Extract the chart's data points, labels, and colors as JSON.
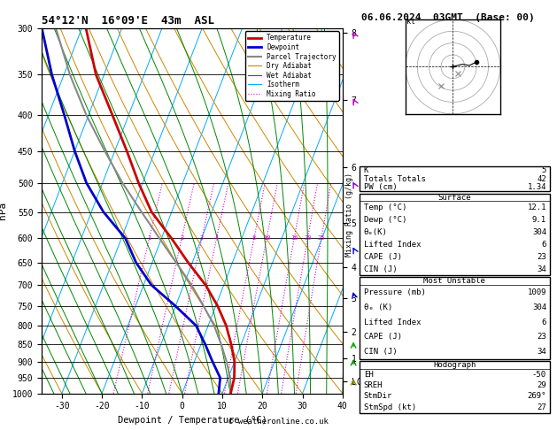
{
  "title_left": "54°12'N  16°09'E  43m  ASL",
  "title_right": "06.06.2024  03GMT  (Base: 00)",
  "copyright": "© weatheronline.co.uk",
  "xlabel": "Dewpoint / Temperature (°C)",
  "ylabel_left": "hPa",
  "x_min": -35,
  "x_max": 40,
  "pressure_levels": [
    300,
    350,
    400,
    450,
    500,
    550,
    600,
    650,
    700,
    750,
    800,
    850,
    900,
    950,
    1000
  ],
  "pressure_ticks": [
    300,
    350,
    400,
    450,
    500,
    550,
    600,
    650,
    700,
    750,
    800,
    850,
    900,
    950,
    1000
  ],
  "km_ticks": [
    "8",
    "7",
    "6",
    "5",
    "4",
    "3",
    "2",
    "1",
    "LCL"
  ],
  "km_pressures": [
    305,
    380,
    475,
    570,
    660,
    730,
    815,
    890,
    960
  ],
  "isotherm_color": "#00aaff",
  "dry_adiabat_color": "#cc8800",
  "wet_adiabat_color": "#008800",
  "mixing_ratio_color": "#dd00dd",
  "mixing_ratio_values": [
    1,
    2,
    3,
    4,
    8,
    10,
    16,
    20,
    25
  ],
  "mixing_ratio_label_pressure": 600,
  "temp_profile_T": [
    12.1,
    11.5,
    10.0,
    7.5,
    4.5,
    0.5,
    -4.5,
    -11.0,
    -17.5,
    -25.0,
    -31.0,
    -37.0,
    -44.0,
    -52.0,
    -59.0
  ],
  "temp_profile_P": [
    1000,
    950,
    900,
    850,
    800,
    750,
    700,
    650,
    600,
    550,
    500,
    450,
    400,
    350,
    300
  ],
  "dewp_profile_T": [
    9.1,
    8.0,
    4.5,
    1.0,
    -3.0,
    -10.0,
    -18.0,
    -24.0,
    -29.0,
    -37.0,
    -44.0,
    -50.0,
    -56.0,
    -63.0,
    -70.0
  ],
  "dewp_profile_P": [
    1000,
    950,
    900,
    850,
    800,
    750,
    700,
    650,
    600,
    550,
    500,
    450,
    400,
    350,
    300
  ],
  "parcel_T": [
    12.1,
    10.5,
    8.0,
    5.0,
    1.5,
    -3.0,
    -8.0,
    -14.0,
    -20.5,
    -27.5,
    -35.0,
    -42.5,
    -50.5,
    -58.5,
    -66.5
  ],
  "parcel_P": [
    1000,
    950,
    900,
    850,
    800,
    750,
    700,
    650,
    600,
    550,
    500,
    450,
    400,
    350,
    300
  ],
  "temp_color": "#cc0000",
  "dewp_color": "#0000cc",
  "parcel_color": "#888888",
  "skew_factor": 35,
  "legend_items": [
    {
      "label": "Temperature",
      "color": "#cc0000",
      "lw": 2,
      "ls": "-"
    },
    {
      "label": "Dewpoint",
      "color": "#0000cc",
      "lw": 2,
      "ls": "-"
    },
    {
      "label": "Parcel Trajectory",
      "color": "#888888",
      "lw": 1.5,
      "ls": "-"
    },
    {
      "label": "Dry Adiabat",
      "color": "#cc8800",
      "lw": 0.8,
      "ls": "-"
    },
    {
      "label": "Wet Adiabat",
      "color": "#008800",
      "lw": 0.8,
      "ls": "-"
    },
    {
      "label": "Isotherm",
      "color": "#00aaff",
      "lw": 0.8,
      "ls": "-"
    },
    {
      "label": "Mixing Ratio",
      "color": "#dd00dd",
      "lw": 0.8,
      "ls": ":"
    }
  ],
  "table_K": 5,
  "table_TT": 42,
  "table_PW": 1.34,
  "surf_temp": 12.1,
  "surf_dewp": 9.1,
  "surf_theta_e": 304,
  "surf_li": 6,
  "surf_cape": 23,
  "surf_cin": 34,
  "mu_pressure": 1009,
  "mu_theta_e": 304,
  "mu_li": 6,
  "mu_cape": 23,
  "mu_cin": 34,
  "hodo_EH": -50,
  "hodo_SREH": 29,
  "hodo_StmDir": 269,
  "hodo_StmSpd": 27,
  "hodo_points_u": [
    0.0,
    2.0,
    4.0,
    7.0,
    10.0
  ],
  "hodo_points_v": [
    0.0,
    0.5,
    1.0,
    0.5,
    2.0
  ],
  "bg_color": "#ffffff",
  "wind_barb_pressures": [
    300,
    400,
    500,
    600,
    700,
    850,
    950
  ],
  "wind_barb_colors": [
    "#cc00cc",
    "#cc00cc",
    "#8800cc",
    "#0000cc",
    "#0000cc",
    "#00aa00",
    "#aaaa00"
  ],
  "wind_barb_angles": [
    45,
    45,
    45,
    45,
    45,
    0,
    0
  ],
  "wind_barb_speeds": [
    50,
    25,
    20,
    15,
    10,
    5,
    5
  ]
}
